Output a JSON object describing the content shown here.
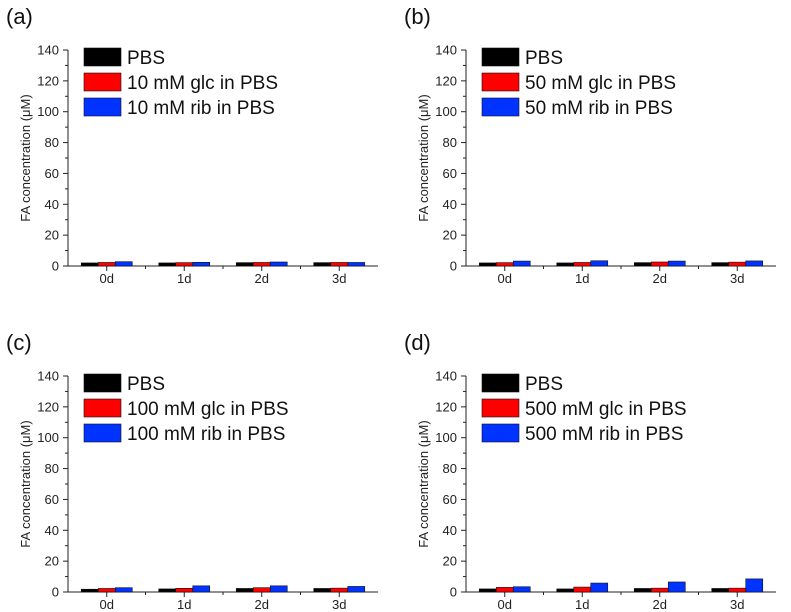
{
  "colors": {
    "PBS": "#000000",
    "glc": "#ff0000",
    "rib": "#0033ff"
  },
  "chart_data": [
    {
      "panel_label": "(a)",
      "type": "bar",
      "ylabel": "FA concentration (μM)",
      "xlabel": "",
      "ylim": [
        0,
        140
      ],
      "yticks": [
        "0",
        "20",
        "40",
        "60",
        "80",
        "100",
        "120",
        "140"
      ],
      "categories": [
        "0d",
        "1d",
        "2d",
        "3d"
      ],
      "legend_position": "top-left",
      "series": [
        {
          "name": "PBS",
          "color_key": "PBS",
          "values": [
            2.0,
            2.0,
            2.2,
            2.2
          ]
        },
        {
          "name": "10 mM glc in PBS",
          "color_key": "glc",
          "values": [
            2.3,
            2.2,
            2.3,
            2.3
          ]
        },
        {
          "name": "10 mM rib in PBS",
          "color_key": "rib",
          "values": [
            2.8,
            2.4,
            2.6,
            2.3
          ]
        }
      ]
    },
    {
      "panel_label": "(b)",
      "type": "bar",
      "ylabel": "FA concentration (μM)",
      "xlabel": "",
      "ylim": [
        0,
        140
      ],
      "yticks": [
        "0",
        "20",
        "40",
        "60",
        "80",
        "100",
        "120",
        "140"
      ],
      "categories": [
        "0d",
        "1d",
        "2d",
        "3d"
      ],
      "legend_position": "top-left",
      "series": [
        {
          "name": "PBS",
          "color_key": "PBS",
          "values": [
            2.0,
            2.0,
            2.2,
            2.2
          ]
        },
        {
          "name": "50 mM glc in PBS",
          "color_key": "glc",
          "values": [
            2.2,
            2.3,
            2.6,
            2.5
          ]
        },
        {
          "name": "50 mM rib in PBS",
          "color_key": "rib",
          "values": [
            3.2,
            3.4,
            3.2,
            3.3
          ]
        }
      ]
    },
    {
      "panel_label": "(c)",
      "type": "bar",
      "ylabel": "FA concentration (μM)",
      "xlabel": "",
      "ylim": [
        0,
        140
      ],
      "yticks": [
        "0",
        "20",
        "40",
        "60",
        "80",
        "100",
        "120",
        "140"
      ],
      "categories": [
        "0d",
        "1d",
        "2d",
        "3d"
      ],
      "legend_position": "top-left",
      "series": [
        {
          "name": "PBS",
          "color_key": "PBS",
          "values": [
            1.8,
            2.0,
            2.3,
            2.3
          ]
        },
        {
          "name": "100 mM glc in PBS",
          "color_key": "glc",
          "values": [
            2.3,
            2.4,
            2.8,
            2.5
          ]
        },
        {
          "name": "100 mM rib in PBS",
          "color_key": "rib",
          "values": [
            2.8,
            4.0,
            4.0,
            3.6
          ]
        }
      ]
    },
    {
      "panel_label": "(d)",
      "type": "bar",
      "ylabel": "FA concentration (μM)",
      "xlabel": "",
      "ylim": [
        0,
        140
      ],
      "yticks": [
        "0",
        "20",
        "40",
        "60",
        "80",
        "100",
        "120",
        "140"
      ],
      "categories": [
        "0d",
        "1d",
        "2d",
        "3d"
      ],
      "legend_position": "top-left",
      "series": [
        {
          "name": "PBS",
          "color_key": "PBS",
          "values": [
            2.0,
            2.0,
            2.3,
            2.3
          ]
        },
        {
          "name": "500 mM glc in PBS",
          "color_key": "glc",
          "values": [
            3.0,
            3.2,
            2.5,
            2.5
          ]
        },
        {
          "name": "500 mM rib in PBS",
          "color_key": "rib",
          "values": [
            3.4,
            5.8,
            6.5,
            8.5
          ]
        }
      ]
    }
  ]
}
